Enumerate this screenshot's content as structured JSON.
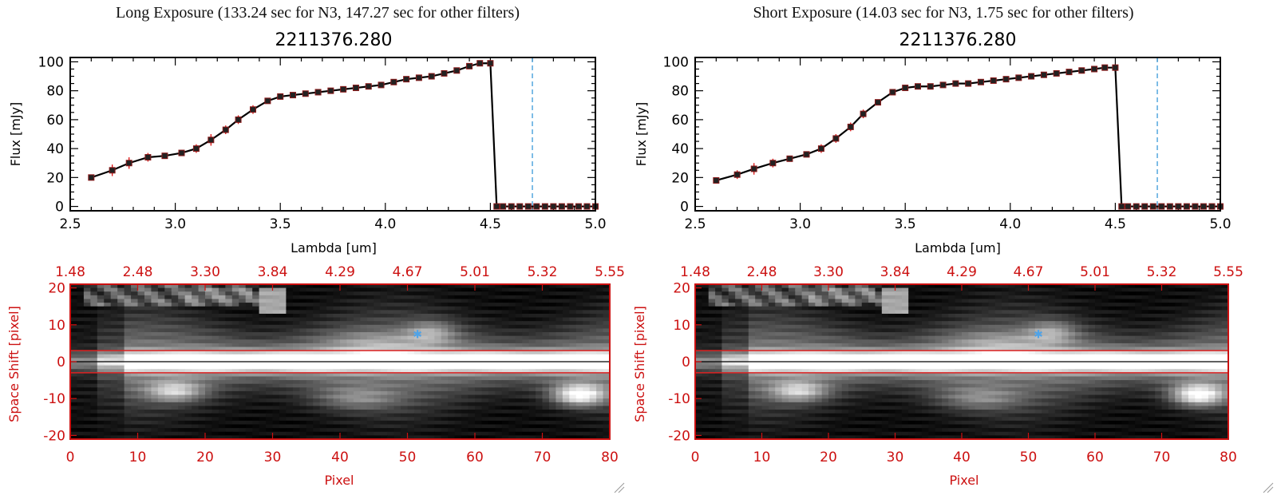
{
  "chart_data": [
    {
      "type": "line",
      "title": "Long Exposure (133.24 sec for N3, 147.27 sec for other filters)",
      "subtitle": "2211376.280",
      "xlabel": "Lambda [um]",
      "ylabel": "Flux [mJy]",
      "xlim": [
        2.5,
        5.0
      ],
      "ylim": [
        -3,
        103
      ],
      "xticks": [
        "2.5",
        "3.0",
        "3.5",
        "4.0",
        "4.5",
        "5.0"
      ],
      "yticks": [
        "0",
        "20",
        "40",
        "60",
        "80",
        "100"
      ],
      "cutoff_line_x": 4.7,
      "x": [
        2.6,
        2.7,
        2.78,
        2.87,
        2.95,
        3.03,
        3.1,
        3.17,
        3.24,
        3.3,
        3.37,
        3.44,
        3.5,
        3.56,
        3.62,
        3.68,
        3.74,
        3.8,
        3.86,
        3.92,
        3.98,
        4.04,
        4.1,
        4.16,
        4.22,
        4.28,
        4.34,
        4.4,
        4.45,
        4.5,
        4.53,
        4.56,
        4.6,
        4.64,
        4.68,
        4.72,
        4.76,
        4.8,
        4.84,
        4.88,
        4.92,
        4.96,
        5.0
      ],
      "values": [
        20,
        25,
        30,
        34,
        35,
        37,
        40,
        46,
        53,
        60,
        67,
        73,
        76,
        77,
        78,
        79,
        80,
        81,
        82,
        83,
        84,
        86,
        88,
        89,
        90,
        92,
        94,
        97,
        99,
        99,
        0,
        0,
        0,
        0,
        0,
        0,
        0,
        0,
        0,
        0,
        0,
        0,
        0
      ],
      "errors": [
        2,
        4,
        4,
        3,
        2,
        2,
        3,
        4,
        3,
        3,
        3,
        2,
        2,
        1,
        1,
        1,
        1,
        1,
        1,
        1,
        1,
        1,
        1,
        1,
        1,
        1,
        2,
        2,
        1,
        1,
        0,
        0,
        0,
        0,
        0,
        0,
        0,
        0,
        0,
        0,
        0,
        0,
        0
      ]
    },
    {
      "type": "line",
      "title": "Short Exposure (14.03 sec for N3, 1.75 sec for other filters)",
      "subtitle": "2211376.280",
      "xlabel": "Lambda [um]",
      "ylabel": "Flux [mJy]",
      "xlim": [
        2.5,
        5.0
      ],
      "ylim": [
        -3,
        103
      ],
      "xticks": [
        "2.5",
        "3.0",
        "3.5",
        "4.0",
        "4.5",
        "5.0"
      ],
      "yticks": [
        "0",
        "20",
        "40",
        "60",
        "80",
        "100"
      ],
      "cutoff_line_x": 4.7,
      "x": [
        2.6,
        2.7,
        2.78,
        2.87,
        2.95,
        3.03,
        3.1,
        3.17,
        3.24,
        3.3,
        3.37,
        3.44,
        3.5,
        3.56,
        3.62,
        3.68,
        3.74,
        3.8,
        3.86,
        3.92,
        3.98,
        4.04,
        4.1,
        4.16,
        4.22,
        4.28,
        4.34,
        4.4,
        4.45,
        4.5,
        4.53,
        4.56,
        4.6,
        4.64,
        4.68,
        4.72,
        4.76,
        4.8,
        4.84,
        4.88,
        4.92,
        4.96,
        5.0
      ],
      "values": [
        18,
        22,
        26,
        30,
        33,
        36,
        40,
        47,
        55,
        64,
        72,
        79,
        82,
        83,
        83,
        84,
        85,
        85,
        86,
        87,
        88,
        89,
        90,
        91,
        92,
        93,
        94,
        95,
        96,
        96,
        0,
        0,
        0,
        0,
        0,
        0,
        0,
        0,
        0,
        0,
        0,
        0,
        0
      ],
      "errors": [
        2,
        3,
        4,
        3,
        2,
        2,
        3,
        3,
        3,
        3,
        2,
        2,
        1,
        1,
        1,
        1,
        1,
        1,
        1,
        1,
        1,
        1,
        1,
        1,
        1,
        1,
        2,
        1,
        1,
        1,
        0,
        0,
        0,
        0,
        0,
        0,
        0,
        0,
        0,
        0,
        0,
        0,
        0
      ]
    },
    {
      "type": "heatmap",
      "xlabel": "Pixel",
      "ylabel": "Space Shift [pixel]",
      "xlim": [
        0,
        80
      ],
      "ylim": [
        -21,
        21
      ],
      "xticks": [
        "0",
        "10",
        "20",
        "30",
        "40",
        "50",
        "60",
        "70",
        "80"
      ],
      "yticks": [
        "-20",
        "-10",
        "0",
        "10",
        "20"
      ],
      "top_axis_ticks": [
        "1.48",
        "2.48",
        "3.30",
        "3.84",
        "4.29",
        "4.67",
        "5.01",
        "5.32",
        "5.55"
      ],
      "extraction_box": [
        -3,
        3
      ],
      "marker": {
        "x": 51.5,
        "y": 7.5,
        "symbol": "star"
      }
    },
    {
      "type": "heatmap",
      "xlabel": "Pixel",
      "ylabel": "Space Shift [pixel]",
      "xlim": [
        0,
        80
      ],
      "ylim": [
        -21,
        21
      ],
      "xticks": [
        "0",
        "10",
        "20",
        "30",
        "40",
        "50",
        "60",
        "70",
        "80"
      ],
      "yticks": [
        "-20",
        "-10",
        "0",
        "10",
        "20"
      ],
      "top_axis_ticks": [
        "1.48",
        "2.48",
        "3.30",
        "3.84",
        "4.29",
        "4.67",
        "5.01",
        "5.32",
        "5.55"
      ],
      "extraction_box": [
        -3,
        3
      ],
      "marker": {
        "x": 51.5,
        "y": 7.5,
        "symbol": "star"
      }
    }
  ],
  "colors": {
    "line": "#000000",
    "error_bar": "#dd1111",
    "marker": "#222222",
    "cutoff": "#3a9ad9",
    "image_axis": "#cc1111",
    "star": "#4fa3e8"
  }
}
